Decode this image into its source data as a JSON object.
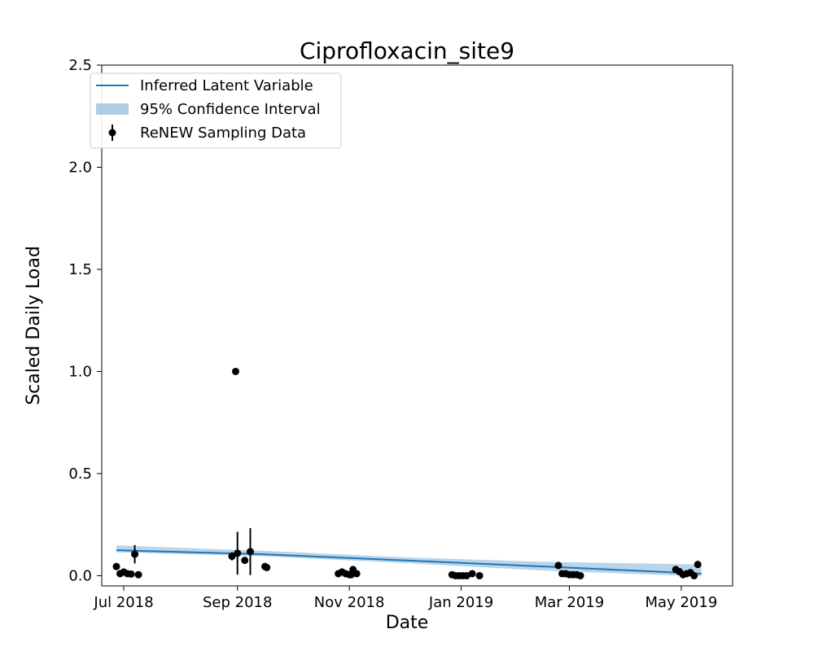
{
  "chart_data": {
    "type": "scatter",
    "title": "Ciprofloxacin_site9",
    "xlabel": "Date",
    "ylabel": "Scaled Daily Load",
    "xlim": [
      "2018-06-19",
      "2019-05-29"
    ],
    "ylim": [
      -0.05,
      2.5
    ],
    "x_ticks": [
      {
        "date": "2018-07-01",
        "label": "Jul 2018"
      },
      {
        "date": "2018-09-01",
        "label": "Sep 2018"
      },
      {
        "date": "2018-11-01",
        "label": "Nov 2018"
      },
      {
        "date": "2019-01-01",
        "label": "Jan 2019"
      },
      {
        "date": "2019-03-01",
        "label": "Mar 2019"
      },
      {
        "date": "2019-05-01",
        "label": "May 2019"
      }
    ],
    "y_ticks": [
      {
        "value": 0.0,
        "label": "0.0"
      },
      {
        "value": 0.5,
        "label": "0.5"
      },
      {
        "value": 1.0,
        "label": "1.0"
      },
      {
        "value": 1.5,
        "label": "1.5"
      },
      {
        "value": 2.0,
        "label": "2.0"
      },
      {
        "value": 2.5,
        "label": "2.5"
      }
    ],
    "grid": false,
    "legend": {
      "position": "top-left",
      "entries": [
        {
          "label": "Inferred Latent Variable",
          "kind": "line"
        },
        {
          "label": "95% Confidence Interval",
          "kind": "band"
        },
        {
          "label": "ReNEW Sampling Data",
          "kind": "errorbar"
        }
      ]
    },
    "colors": {
      "line": "#1f77b4",
      "band": "#aecde6",
      "points": "#000000"
    },
    "latent_line": {
      "x": [
        "2018-06-27",
        "2018-09-15",
        "2018-12-01",
        "2019-02-15",
        "2019-05-12"
      ],
      "y": [
        0.125,
        0.105,
        0.075,
        0.045,
        0.01
      ]
    },
    "confidence_band": {
      "x": [
        "2018-06-27",
        "2018-09-15",
        "2018-12-01",
        "2019-02-15",
        "2019-05-12"
      ],
      "lower": [
        0.115,
        0.095,
        0.062,
        0.025,
        -0.003
      ],
      "upper": [
        0.148,
        0.122,
        0.09,
        0.068,
        0.055
      ]
    },
    "sampling_data": [
      {
        "date": "2018-06-27",
        "value": 0.045
      },
      {
        "date": "2018-06-29",
        "value": 0.01
      },
      {
        "date": "2018-07-01",
        "value": 0.018
      },
      {
        "date": "2018-07-03",
        "value": 0.01
      },
      {
        "date": "2018-07-05",
        "value": 0.008
      },
      {
        "date": "2018-07-07",
        "value": 0.105,
        "err": 0.045
      },
      {
        "date": "2018-07-09",
        "value": 0.005
      },
      {
        "date": "2018-08-29",
        "value": 0.095,
        "err": 0.02
      },
      {
        "date": "2018-08-31",
        "value": 1.0
      },
      {
        "date": "2018-09-01",
        "value": 0.11,
        "err": 0.105
      },
      {
        "date": "2018-09-05",
        "value": 0.075
      },
      {
        "date": "2018-09-08",
        "value": 0.118,
        "err": 0.115
      },
      {
        "date": "2018-09-16",
        "value": 0.045
      },
      {
        "date": "2018-09-17",
        "value": 0.04
      },
      {
        "date": "2018-10-26",
        "value": 0.01
      },
      {
        "date": "2018-10-28",
        "value": 0.018
      },
      {
        "date": "2018-10-30",
        "value": 0.01
      },
      {
        "date": "2018-11-01",
        "value": 0.005
      },
      {
        "date": "2018-11-02",
        "value": 0.005
      },
      {
        "date": "2018-11-03",
        "value": 0.03
      },
      {
        "date": "2018-11-05",
        "value": 0.01
      },
      {
        "date": "2018-12-27",
        "value": 0.005
      },
      {
        "date": "2018-12-29",
        "value": 0.0
      },
      {
        "date": "2018-12-31",
        "value": 0.0
      },
      {
        "date": "2019-01-02",
        "value": 0.0
      },
      {
        "date": "2019-01-04",
        "value": 0.0
      },
      {
        "date": "2019-01-07",
        "value": 0.01
      },
      {
        "date": "2019-01-11",
        "value": 0.0
      },
      {
        "date": "2019-02-23",
        "value": 0.05
      },
      {
        "date": "2019-02-25",
        "value": 0.01
      },
      {
        "date": "2019-02-27",
        "value": 0.01
      },
      {
        "date": "2019-03-01",
        "value": 0.005
      },
      {
        "date": "2019-03-03",
        "value": 0.005
      },
      {
        "date": "2019-03-05",
        "value": 0.005
      },
      {
        "date": "2019-03-07",
        "value": 0.0
      },
      {
        "date": "2019-04-28",
        "value": 0.03
      },
      {
        "date": "2019-04-30",
        "value": 0.02
      },
      {
        "date": "2019-05-02",
        "value": 0.005
      },
      {
        "date": "2019-05-04",
        "value": 0.01
      },
      {
        "date": "2019-05-06",
        "value": 0.015
      },
      {
        "date": "2019-05-08",
        "value": 0.0
      },
      {
        "date": "2019-05-10",
        "value": 0.055
      }
    ]
  }
}
